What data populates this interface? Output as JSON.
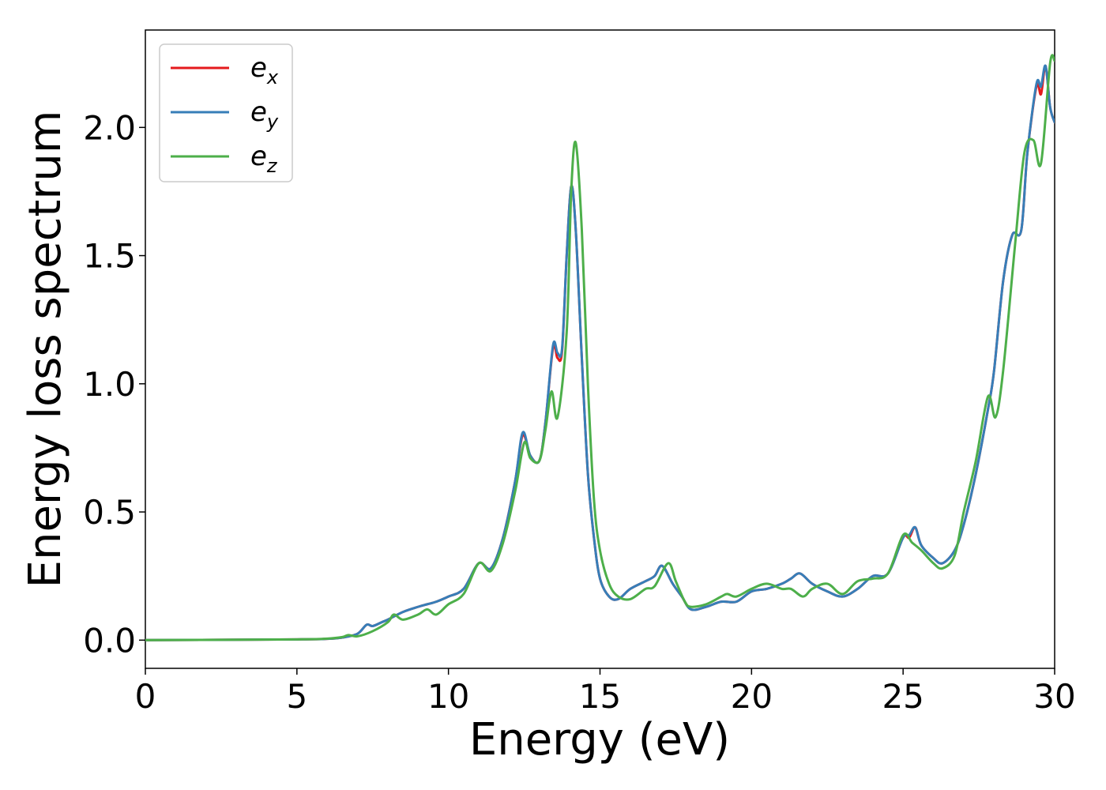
{
  "chart_data": {
    "type": "line",
    "xlabel": "Energy (eV)",
    "ylabel": "Energy loss spectrum",
    "xlim": [
      0,
      30
    ],
    "ylim": [
      -0.11,
      2.38
    ],
    "xticks": [
      0,
      5,
      10,
      15,
      20,
      25,
      30
    ],
    "xtick_labels": [
      "0",
      "5",
      "10",
      "15",
      "20",
      "25",
      "30"
    ],
    "yticks": [
      0.0,
      0.5,
      1.0,
      1.5,
      2.0
    ],
    "ytick_labels": [
      "0.0",
      "0.5",
      "1.0",
      "1.5",
      "2.0"
    ],
    "grid": false,
    "legend_position": "top-left",
    "series": [
      {
        "name": "e_x",
        "legend_base": "e",
        "legend_sub": "x",
        "color": "#e41a1c",
        "x": [
          0,
          5,
          6,
          6.5,
          7,
          7.3,
          7.5,
          7.8,
          8,
          8.5,
          9,
          9.3,
          9.6,
          10,
          10.5,
          11,
          11.4,
          11.8,
          12.2,
          12.45,
          12.7,
          13,
          13.2,
          13.45,
          13.6,
          13.75,
          13.9,
          14.05,
          14.2,
          14.4,
          14.6,
          14.8,
          15,
          15.3,
          15.6,
          16,
          16.5,
          16.8,
          17.05,
          17.4,
          17.7,
          18,
          18.5,
          19,
          19.5,
          20,
          20.5,
          21,
          21.3,
          21.6,
          22,
          22.5,
          23,
          23.5,
          24,
          24.5,
          25,
          25.2,
          25.4,
          25.6,
          26,
          26.3,
          26.7,
          27,
          27.4,
          27.8,
          28,
          28.3,
          28.6,
          28.9,
          29.1,
          29.4,
          29.55,
          29.7,
          29.85,
          30
        ],
        "y": [
          0,
          0.003,
          0.005,
          0.01,
          0.025,
          0.06,
          0.055,
          0.07,
          0.08,
          0.11,
          0.13,
          0.14,
          0.15,
          0.17,
          0.2,
          0.3,
          0.28,
          0.4,
          0.62,
          0.8,
          0.72,
          0.7,
          0.85,
          1.14,
          1.1,
          1.13,
          1.5,
          1.77,
          1.6,
          1.1,
          0.65,
          0.4,
          0.24,
          0.17,
          0.16,
          0.2,
          0.23,
          0.25,
          0.29,
          0.22,
          0.17,
          0.12,
          0.13,
          0.15,
          0.15,
          0.19,
          0.2,
          0.22,
          0.24,
          0.26,
          0.22,
          0.19,
          0.17,
          0.2,
          0.25,
          0.26,
          0.4,
          0.4,
          0.44,
          0.37,
          0.32,
          0.3,
          0.35,
          0.45,
          0.65,
          0.9,
          1.05,
          1.4,
          1.58,
          1.6,
          1.9,
          2.16,
          2.13,
          2.24,
          2.08,
          2.02
        ]
      },
      {
        "name": "e_y",
        "legend_base": "e",
        "legend_sub": "y",
        "color": "#377eb8",
        "x": [
          0,
          5,
          6,
          6.5,
          7,
          7.3,
          7.5,
          7.8,
          8,
          8.5,
          9,
          9.3,
          9.6,
          10,
          10.5,
          11,
          11.4,
          11.8,
          12.2,
          12.45,
          12.7,
          13,
          13.2,
          13.45,
          13.6,
          13.75,
          13.9,
          14.05,
          14.2,
          14.4,
          14.6,
          14.8,
          15,
          15.3,
          15.6,
          16,
          16.5,
          16.8,
          17.05,
          17.4,
          17.7,
          18,
          18.5,
          19,
          19.5,
          20,
          20.5,
          21,
          21.3,
          21.6,
          22,
          22.5,
          23,
          23.5,
          24,
          24.5,
          25,
          25.2,
          25.4,
          25.6,
          26,
          26.3,
          26.7,
          27,
          27.4,
          27.8,
          28,
          28.3,
          28.6,
          28.9,
          29.1,
          29.4,
          29.55,
          29.7,
          29.85,
          30
        ],
        "y": [
          0,
          0.003,
          0.005,
          0.01,
          0.025,
          0.06,
          0.055,
          0.07,
          0.08,
          0.11,
          0.13,
          0.14,
          0.15,
          0.17,
          0.2,
          0.3,
          0.28,
          0.4,
          0.62,
          0.81,
          0.72,
          0.7,
          0.85,
          1.15,
          1.12,
          1.14,
          1.5,
          1.77,
          1.6,
          1.1,
          0.65,
          0.4,
          0.24,
          0.17,
          0.16,
          0.2,
          0.23,
          0.25,
          0.29,
          0.22,
          0.17,
          0.12,
          0.13,
          0.15,
          0.15,
          0.19,
          0.2,
          0.22,
          0.24,
          0.26,
          0.22,
          0.19,
          0.17,
          0.2,
          0.25,
          0.26,
          0.4,
          0.41,
          0.44,
          0.37,
          0.32,
          0.3,
          0.35,
          0.45,
          0.65,
          0.9,
          1.05,
          1.4,
          1.58,
          1.6,
          1.9,
          2.17,
          2.16,
          2.24,
          2.08,
          2.02
        ]
      },
      {
        "name": "e_z",
        "legend_base": "e",
        "legend_sub": "z",
        "color": "#4daf4a",
        "x": [
          0,
          5,
          6,
          6.5,
          6.7,
          7,
          7.5,
          8,
          8.2,
          8.5,
          9,
          9.3,
          9.6,
          10,
          10.5,
          11,
          11.4,
          11.8,
          12.2,
          12.5,
          12.7,
          13,
          13.2,
          13.4,
          13.6,
          13.9,
          14.05,
          14.2,
          14.4,
          14.6,
          14.8,
          15,
          15.3,
          15.6,
          16,
          16.5,
          16.8,
          17.25,
          17.5,
          17.8,
          18,
          18.5,
          19,
          19.2,
          19.5,
          20,
          20.5,
          21,
          21.3,
          21.7,
          22,
          22.5,
          23,
          23.5,
          24,
          24.5,
          25,
          25.3,
          25.6,
          26,
          26.3,
          26.7,
          27,
          27.4,
          27.8,
          28.05,
          28.3,
          28.7,
          29,
          29.3,
          29.55,
          29.85,
          30
        ],
        "y": [
          0,
          0.003,
          0.006,
          0.012,
          0.02,
          0.015,
          0.035,
          0.07,
          0.1,
          0.08,
          0.1,
          0.12,
          0.1,
          0.14,
          0.18,
          0.3,
          0.27,
          0.38,
          0.58,
          0.77,
          0.71,
          0.7,
          0.82,
          0.97,
          0.87,
          1.2,
          1.75,
          1.94,
          1.6,
          1.0,
          0.55,
          0.35,
          0.22,
          0.17,
          0.16,
          0.2,
          0.21,
          0.3,
          0.23,
          0.15,
          0.13,
          0.14,
          0.17,
          0.18,
          0.17,
          0.2,
          0.22,
          0.2,
          0.2,
          0.17,
          0.2,
          0.22,
          0.18,
          0.23,
          0.24,
          0.26,
          0.41,
          0.38,
          0.35,
          0.3,
          0.28,
          0.33,
          0.5,
          0.7,
          0.95,
          0.87,
          1.05,
          1.55,
          1.9,
          1.95,
          1.86,
          2.25,
          2.26
        ]
      }
    ]
  }
}
